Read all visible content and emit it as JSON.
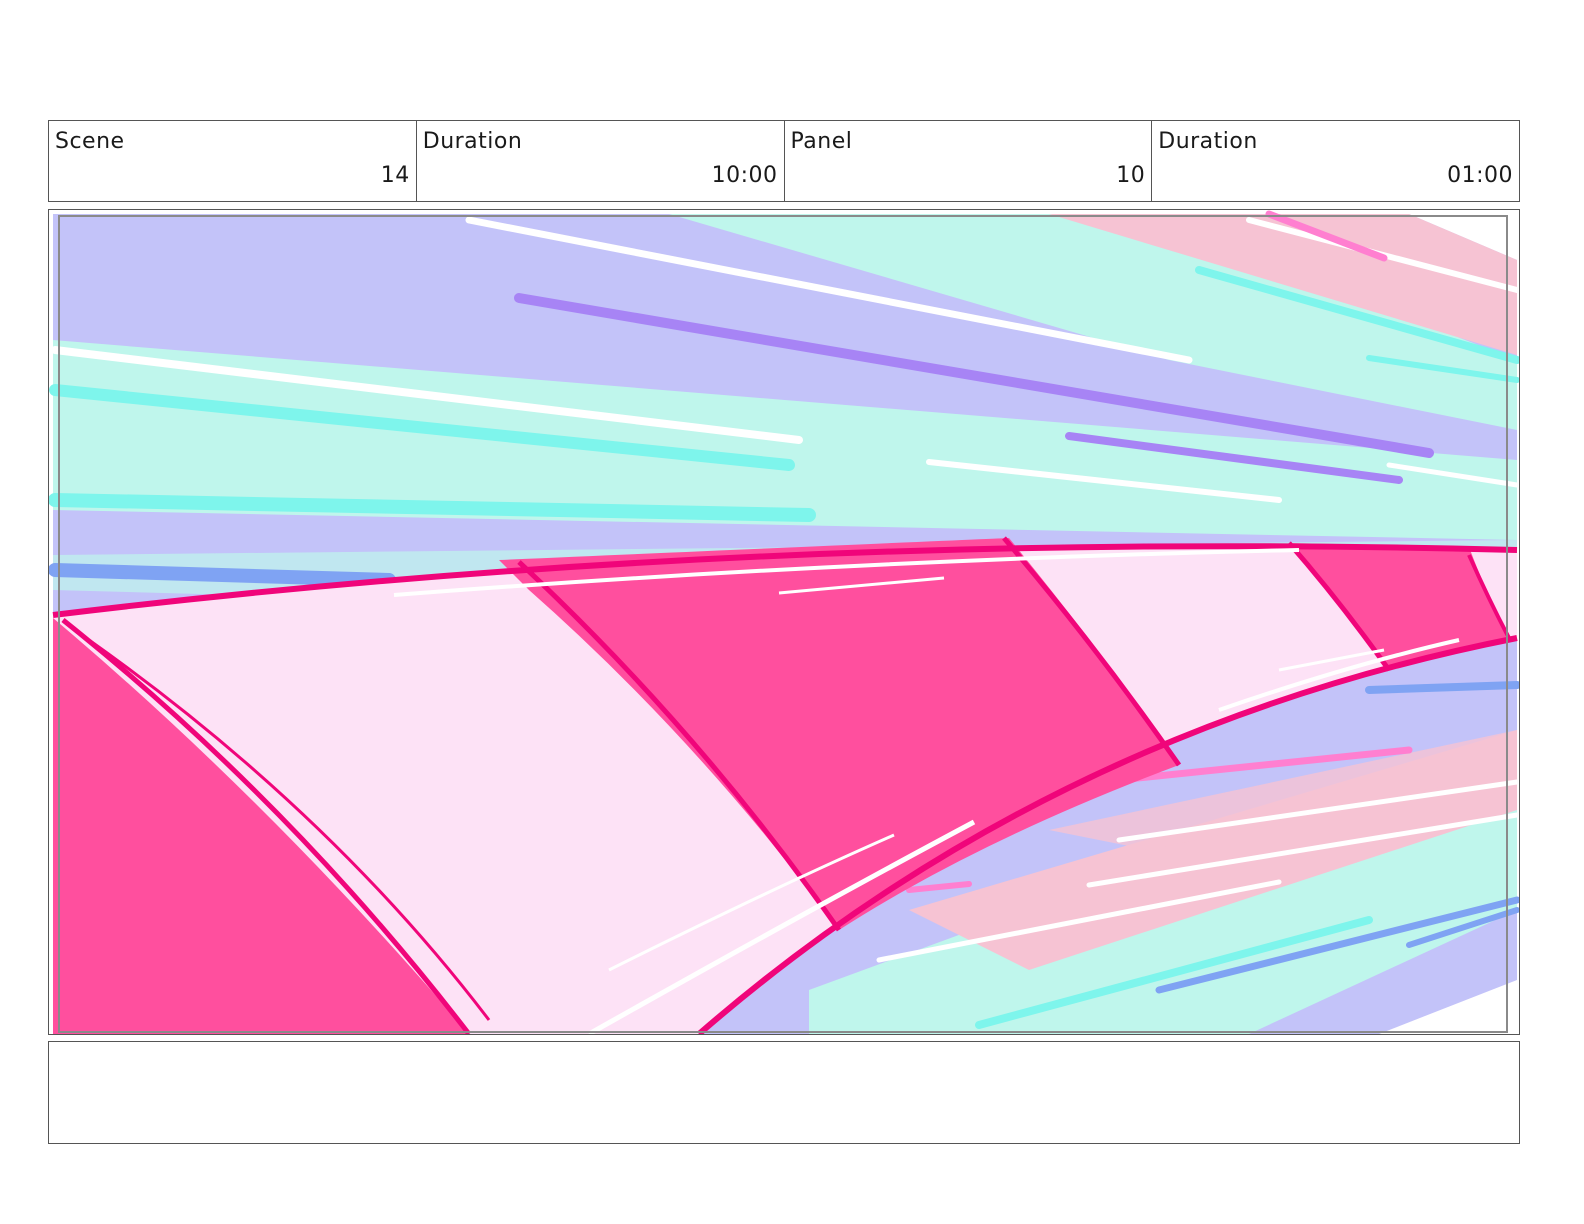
{
  "header": {
    "scene_label": "Scene",
    "scene_value": "14",
    "duration_label": "Duration",
    "duration_value": "10:00",
    "panel_label": "Panel",
    "panel_value": "10",
    "panel_duration_label": "Duration",
    "panel_duration_value": "01:00"
  },
  "notes": {
    "text": ""
  },
  "colors": {
    "lavender": "#c3c3f9",
    "mint": "#bff6ec",
    "cyan": "#7ef5ec",
    "pink_light": "#fde2f6",
    "pink_hot": "#ff4f9e",
    "magenta_line": "#f0057a",
    "blush": "#f6c3d3",
    "violet": "#a784f5",
    "blue": "#7fa3f3"
  }
}
